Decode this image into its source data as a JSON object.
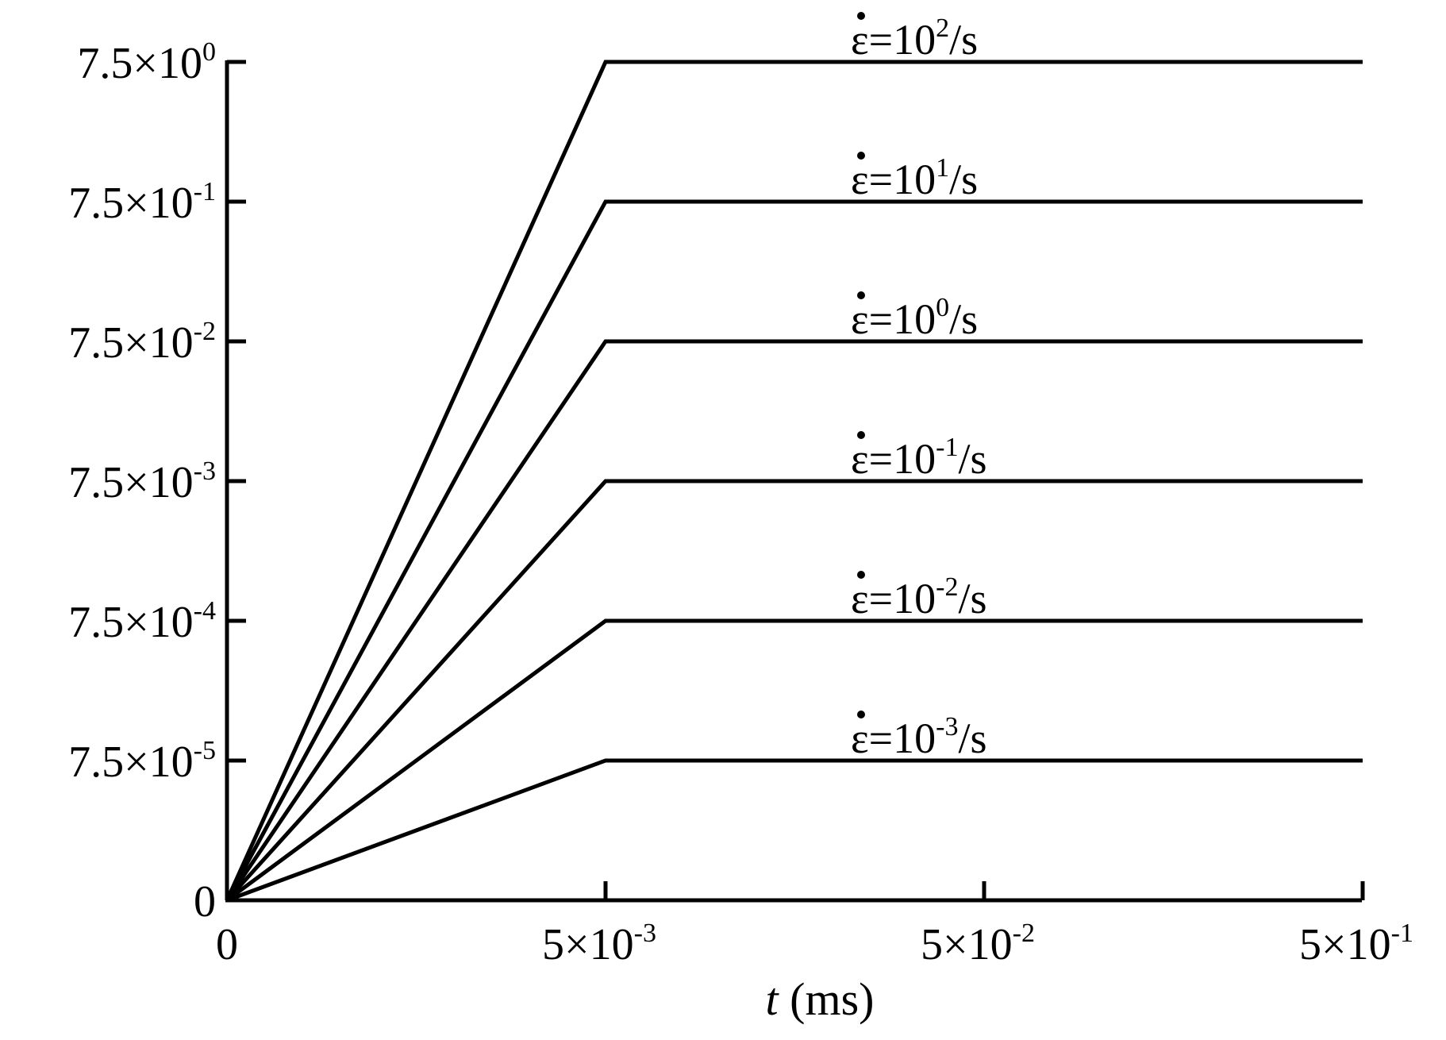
{
  "chart_data": {
    "type": "line",
    "xlabel": {
      "var": "t",
      "unit": " (ms)"
    },
    "x_ticks": [
      {
        "label": "0"
      },
      {
        "label": "5×10",
        "exp": "-3"
      },
      {
        "label": "5×10",
        "exp": "-2"
      },
      {
        "label": "5×10",
        "exp": "-1"
      }
    ],
    "y_ticks": [
      {
        "label": "0"
      },
      {
        "label": "7.5×10",
        "exp": "-5"
      },
      {
        "label": "7.5×10",
        "exp": "-4"
      },
      {
        "label": "7.5×10",
        "exp": "-3"
      },
      {
        "label": "7.5×10",
        "exp": "-2"
      },
      {
        "label": "7.5×10",
        "exp": "-1"
      },
      {
        "label": "7.5×10",
        "exp": "0"
      }
    ],
    "series": [
      {
        "name": "ε̇=10^-3/s",
        "label_base": "ε=10",
        "label_exp": "-3",
        "label_tail": "/s",
        "level": 1
      },
      {
        "name": "ε̇=10^-2/s",
        "label_base": "ε=10",
        "label_exp": "-2",
        "label_tail": "/s",
        "level": 2
      },
      {
        "name": "ε̇=10^-1/s",
        "label_base": "ε=10",
        "label_exp": "-1",
        "label_tail": "/s",
        "level": 3
      },
      {
        "name": "ε̇=10^0/s",
        "label_base": "ε=10",
        "label_exp": "0",
        "label_tail": "/s",
        "level": 4
      },
      {
        "name": "ε̇=10^1/s",
        "label_base": "ε=10",
        "label_exp": "1",
        "label_tail": "/s",
        "level": 5
      },
      {
        "name": "ε̇=10^2/s",
        "label_base": "ε=10",
        "label_exp": "2",
        "label_tail": "/s",
        "level": 6
      }
    ],
    "ramp_end_x_tick": 1,
    "x_max_tick": 3,
    "grid": false,
    "line_color": "#000000"
  }
}
